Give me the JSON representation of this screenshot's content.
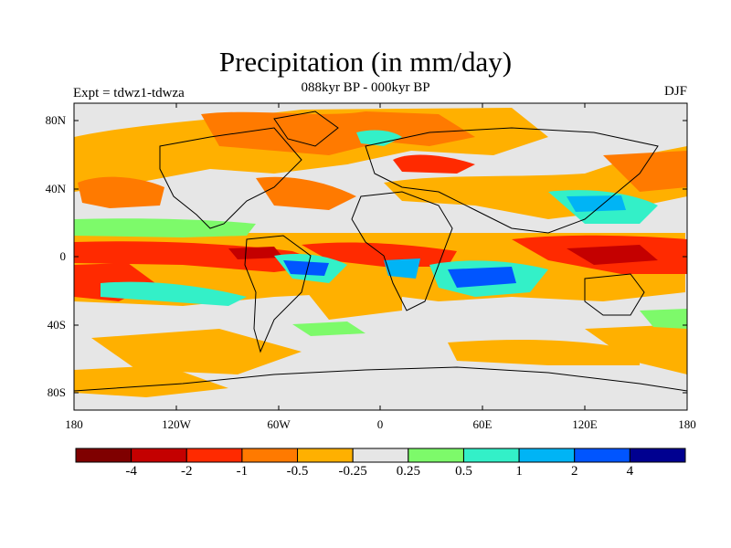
{
  "title": "Precipitation (in mm/day)",
  "subtitle": "088kyr BP - 000kyr BP",
  "expt_label": "Expt = tdwz1-tdwza",
  "season": "DJF",
  "lat_labels": [
    "80N",
    "40N",
    "0",
    "40S",
    "80S"
  ],
  "lon_labels": [
    "180",
    "120W",
    "60W",
    "0",
    "60E",
    "120E",
    "180"
  ],
  "colorbar": {
    "colors": [
      "#7f0000",
      "#c40000",
      "#ff2a00",
      "#ff7a00",
      "#ffb000",
      "#e6e6e6",
      "#7dfa6a",
      "#33f0c8",
      "#00b4f5",
      "#0055ff",
      "#000090"
    ],
    "labels": [
      "-4",
      "-2",
      "-1",
      "-0.5",
      "-0.25",
      "0.25",
      "0.5",
      "1",
      "2",
      "4"
    ]
  }
}
